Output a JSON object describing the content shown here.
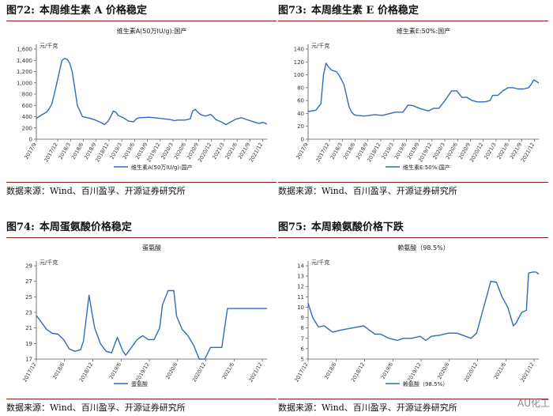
{
  "source_label": "数据来源：Wind、百川盈孚、开源证券研究所",
  "watermark": "AU化工",
  "chart_data": [
    {
      "type": "line",
      "figure_number": "图72:",
      "figure_title": "本周维生素 A 价格稳定",
      "title": "维生素A(50万IU/g):国产",
      "unit": "元/千克",
      "color": "#2f6bbf",
      "ylim": [
        0,
        1600
      ],
      "yticks": [
        0,
        200,
        400,
        600,
        800,
        1000,
        1200,
        1400,
        1600
      ],
      "ytick_labels": [
        "0",
        "200",
        "400",
        "600",
        "800",
        "1,000",
        "1,200",
        "1,400",
        "1,600"
      ],
      "xlim": [
        2017.5,
        2022.0
      ],
      "xticks": [
        2017.5,
        2017.917,
        2018.167,
        2018.417,
        2018.667,
        2018.917,
        2019.167,
        2019.417,
        2019.667,
        2019.917,
        2020.167,
        2020.417,
        2020.667,
        2020.917,
        2021.167,
        2021.417,
        2021.667,
        2021.917
      ],
      "xtick_labels": [
        "2017/9",
        "2017/12",
        "2018/3",
        "2018/6",
        "2018/9",
        "2018/12",
        "2019/3",
        "2019/6",
        "2019/9",
        "2019/12",
        "2020/3",
        "2020/6",
        "2020/9",
        "2020/12",
        "2021/3",
        "2021/6",
        "2021/9",
        "2021/12"
      ],
      "series": [
        {
          "name": "维生素A(50万IU/g):国产",
          "x": [
            2017.5,
            2017.6,
            2017.7,
            2017.75,
            2017.8,
            2017.85,
            2017.9,
            2017.95,
            2018.0,
            2018.05,
            2018.1,
            2018.15,
            2018.2,
            2018.25,
            2018.3,
            2018.35,
            2018.4,
            2018.45,
            2018.55,
            2018.65,
            2018.75,
            2018.83,
            2018.9,
            2018.95,
            2019.0,
            2019.05,
            2019.1,
            2019.2,
            2019.3,
            2019.4,
            2019.45,
            2019.5,
            2019.7,
            2019.9,
            2020.0,
            2020.1,
            2020.15,
            2020.2,
            2020.25,
            2020.3,
            2020.4,
            2020.5,
            2020.55,
            2020.6,
            2020.65,
            2020.7,
            2020.8,
            2020.9,
            2020.95,
            2021.0,
            2021.1,
            2021.2,
            2021.3,
            2021.4,
            2021.5,
            2021.6,
            2021.7,
            2021.8,
            2021.85,
            2021.92,
            2022.0
          ],
          "y": [
            370,
            430,
            480,
            540,
            620,
            800,
            1000,
            1200,
            1400,
            1430,
            1420,
            1350,
            1200,
            900,
            600,
            500,
            400,
            390,
            370,
            340,
            300,
            260,
            320,
            400,
            500,
            480,
            420,
            380,
            320,
            310,
            360,
            380,
            390,
            370,
            360,
            350,
            340,
            330,
            340,
            340,
            340,
            360,
            500,
            530,
            480,
            440,
            410,
            440,
            400,
            350,
            310,
            260,
            310,
            360,
            380,
            350,
            320,
            290,
            280,
            300,
            270
          ]
        }
      ]
    },
    {
      "type": "line",
      "figure_number": "图73:",
      "figure_title": "本周维生素 E 价格稳定",
      "title": "维生素E:50%:国产",
      "unit": "元/千克",
      "color": "#2f6bbf",
      "ylim": [
        0,
        140
      ],
      "yticks": [
        0,
        20,
        40,
        60,
        80,
        100,
        120,
        140
      ],
      "ytick_labels": [
        "0",
        "20",
        "40",
        "60",
        "80",
        "100",
        "120",
        "140"
      ],
      "xlim": [
        2017.5,
        2022.0
      ],
      "xticks": [
        2017.5,
        2017.917,
        2018.167,
        2018.417,
        2018.667,
        2018.917,
        2019.167,
        2019.417,
        2019.667,
        2019.917,
        2020.167,
        2020.417,
        2020.667,
        2020.917,
        2021.167,
        2021.417,
        2021.667,
        2021.917
      ],
      "xtick_labels": [
        "2017/9",
        "2017/12",
        "2018/3",
        "2018/6",
        "2018/9",
        "2018/12",
        "2019/3",
        "2019/6",
        "2019/9",
        "2019/12",
        "2020/3",
        "2020/6",
        "2020/9",
        "2020/12",
        "2021/3",
        "2021/6",
        "2021/9",
        "2021/12"
      ],
      "series": [
        {
          "name": "维生素E:50%:国产",
          "x": [
            2017.5,
            2017.65,
            2017.75,
            2017.8,
            2017.85,
            2017.9,
            2017.95,
            2018.0,
            2018.05,
            2018.1,
            2018.2,
            2018.3,
            2018.35,
            2018.4,
            2018.45,
            2018.6,
            2018.8,
            2018.95,
            2019.1,
            2019.2,
            2019.35,
            2019.45,
            2019.55,
            2019.7,
            2019.85,
            2019.95,
            2020.05,
            2020.15,
            2020.3,
            2020.4,
            2020.5,
            2020.6,
            2020.7,
            2020.8,
            2020.95,
            2021.05,
            2021.1,
            2021.2,
            2021.3,
            2021.4,
            2021.5,
            2021.6,
            2021.7,
            2021.8,
            2021.85,
            2021.9,
            2021.95,
            2022.0
          ],
          "y": [
            43,
            45,
            55,
            100,
            118,
            112,
            108,
            106,
            105,
            100,
            85,
            50,
            42,
            38,
            37,
            36,
            38,
            37,
            40,
            42,
            42,
            53,
            52,
            47,
            44,
            48,
            48,
            58,
            75,
            75,
            65,
            65,
            60,
            58,
            58,
            60,
            68,
            68,
            75,
            80,
            80,
            78,
            78,
            80,
            85,
            92,
            90,
            87
          ]
        }
      ]
    },
    {
      "type": "line",
      "figure_number": "图74:",
      "figure_title": "本周蛋氨酸价格稳定",
      "title": "蛋氨酸",
      "unit": "元/千克",
      "color": "#2f6bbf",
      "ylim": [
        17,
        29
      ],
      "yticks": [
        17,
        19,
        21,
        23,
        25,
        27,
        29
      ],
      "ytick_labels": [
        "17",
        "19",
        "21",
        "23",
        "25",
        "27",
        "29"
      ],
      "xlim": [
        2017.917,
        2022.0
      ],
      "xticks": [
        2017.917,
        2018.417,
        2018.917,
        2019.417,
        2019.917,
        2020.417,
        2020.917,
        2021.417,
        2021.917
      ],
      "xtick_labels": [
        "2017/12",
        "2018/6",
        "2018/12",
        "2019/6",
        "2019/12",
        "2020/6",
        "2020/12",
        "2021/6",
        "2021/12"
      ],
      "series": [
        {
          "name": "蛋氨酸",
          "x": [
            2017.917,
            2018.0,
            2018.1,
            2018.2,
            2018.3,
            2018.4,
            2018.5,
            2018.6,
            2018.7,
            2018.75,
            2018.85,
            2018.9,
            2018.95,
            2019.05,
            2019.15,
            2019.25,
            2019.35,
            2019.45,
            2019.5,
            2019.6,
            2019.7,
            2019.8,
            2019.9,
            2020.0,
            2020.1,
            2020.15,
            2020.25,
            2020.35,
            2020.4,
            2020.5,
            2020.6,
            2020.7,
            2020.8,
            2020.9,
            2021.0,
            2021.05,
            2021.1,
            2021.2,
            2021.3,
            2021.4,
            2021.5,
            2021.6,
            2021.7,
            2021.8,
            2021.9,
            2022.0
          ],
          "y": [
            22.6,
            21.8,
            20.8,
            20.3,
            20.2,
            19.5,
            18.3,
            18.0,
            18.2,
            19.3,
            25.2,
            23.0,
            21.0,
            19.0,
            18.0,
            17.8,
            19.8,
            18.0,
            17.5,
            18.5,
            19.5,
            20.0,
            19.5,
            19.5,
            21.0,
            24.0,
            25.8,
            25.8,
            22.5,
            20.8,
            20.0,
            18.8,
            17.0,
            17.0,
            18.5,
            18.5,
            18.5,
            18.5,
            23.5,
            23.5,
            23.5,
            23.5,
            23.5,
            23.5,
            23.5,
            23.5
          ]
        }
      ]
    },
    {
      "type": "line",
      "figure_number": "图75:",
      "figure_title": "本周赖氨酸价格下跌",
      "title": "赖氨酸（98.5%）",
      "unit": "元/千克",
      "color": "#2f6bbf",
      "ylim": [
        5,
        14
      ],
      "yticks": [
        5,
        6,
        7,
        8,
        9,
        10,
        11,
        12,
        13,
        14
      ],
      "ytick_labels": [
        "5",
        "6",
        "7",
        "8",
        "9",
        "10",
        "11",
        "12",
        "13",
        "14"
      ],
      "xlim": [
        2017.917,
        2022.0
      ],
      "xticks": [
        2017.917,
        2018.417,
        2018.917,
        2019.417,
        2019.917,
        2020.417,
        2020.917,
        2021.417,
        2021.917
      ],
      "xtick_labels": [
        "2017/12",
        "2018/6",
        "2018/12",
        "2019/6",
        "2019/12",
        "2020/6",
        "2020/12",
        "2021/6",
        "2021/12"
      ],
      "series": [
        {
          "name": "赖氨酸（98.5%）",
          "x": [
            2017.917,
            2018.0,
            2018.1,
            2018.2,
            2018.35,
            2018.5,
            2018.7,
            2018.9,
            2019.0,
            2019.1,
            2019.2,
            2019.35,
            2019.5,
            2019.6,
            2019.75,
            2019.9,
            2020.0,
            2020.1,
            2020.25,
            2020.4,
            2020.55,
            2020.65,
            2020.8,
            2020.9,
            2020.95,
            2021.05,
            2021.15,
            2021.25,
            2021.35,
            2021.45,
            2021.55,
            2021.6,
            2021.7,
            2021.78,
            2021.82,
            2021.9,
            2021.95,
            2022.0
          ],
          "y": [
            10.4,
            9.0,
            8.1,
            8.2,
            7.6,
            7.8,
            8.0,
            8.2,
            7.8,
            7.4,
            7.4,
            7.0,
            6.8,
            7.0,
            7.0,
            7.2,
            6.8,
            7.2,
            7.3,
            7.5,
            7.5,
            7.3,
            7.0,
            7.5,
            8.5,
            10.5,
            12.5,
            12.4,
            11.0,
            10.0,
            8.2,
            8.5,
            9.5,
            9.7,
            13.3,
            13.4,
            13.4,
            13.2
          ]
        }
      ]
    }
  ]
}
